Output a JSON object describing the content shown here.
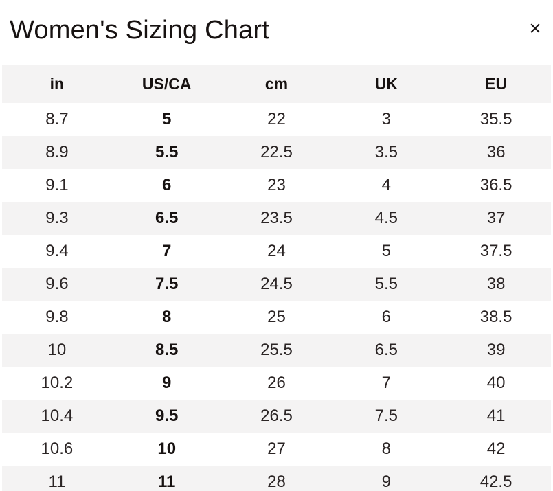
{
  "modal": {
    "title": "Women's Sizing Chart",
    "close_glyph": "×"
  },
  "table": {
    "columns": [
      "in",
      "US/CA",
      "cm",
      "UK",
      "EU"
    ],
    "emphasized_column": "US/CA",
    "emphasized_column_index": 1,
    "rows": [
      [
        "8.7",
        "5",
        "22",
        "3",
        "35.5"
      ],
      [
        "8.9",
        "5.5",
        "22.5",
        "3.5",
        "36"
      ],
      [
        "9.1",
        "6",
        "23",
        "4",
        "36.5"
      ],
      [
        "9.3",
        "6.5",
        "23.5",
        "4.5",
        "37"
      ],
      [
        "9.4",
        "7",
        "24",
        "5",
        "37.5"
      ],
      [
        "9.6",
        "7.5",
        "24.5",
        "5.5",
        "38"
      ],
      [
        "9.8",
        "8",
        "25",
        "6",
        "38.5"
      ],
      [
        "10",
        "8.5",
        "25.5",
        "6.5",
        "39"
      ],
      [
        "10.2",
        "9",
        "26",
        "7",
        "40"
      ],
      [
        "10.4",
        "9.5",
        "26.5",
        "7.5",
        "41"
      ],
      [
        "10.6",
        "10",
        "27",
        "8",
        "42"
      ],
      [
        "11",
        "11",
        "28",
        "9",
        "42.5"
      ]
    ]
  },
  "colors": {
    "stripe": "#f4f3f3",
    "heading_text": "#171211",
    "body_text": "#2b2525",
    "background": "#ffffff"
  }
}
